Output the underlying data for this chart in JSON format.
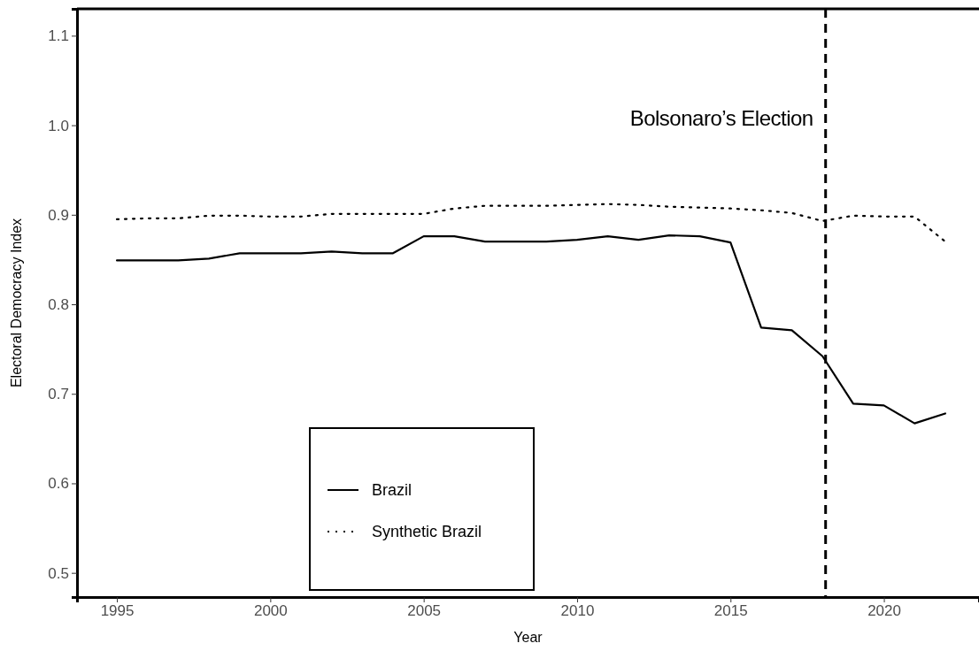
{
  "chart_data": {
    "type": "line",
    "xlabel": "Year",
    "ylabel": "Electoral Democracy Index",
    "x": [
      1995,
      1996,
      1997,
      1998,
      1999,
      2000,
      2001,
      2002,
      2003,
      2004,
      2005,
      2006,
      2007,
      2008,
      2009,
      2010,
      2011,
      2012,
      2013,
      2014,
      2015,
      2016,
      2017,
      2018,
      2019,
      2020,
      2021,
      2022
    ],
    "series": [
      {
        "name": "Brazil",
        "color": "#000000",
        "line_style": "solid",
        "values": [
          0.849,
          0.849,
          0.849,
          0.851,
          0.857,
          0.857,
          0.857,
          0.859,
          0.857,
          0.857,
          0.876,
          0.876,
          0.87,
          0.87,
          0.87,
          0.872,
          0.876,
          0.872,
          0.877,
          0.876,
          0.869,
          0.774,
          0.771,
          0.742,
          0.689,
          0.687,
          0.667,
          0.678
        ]
      },
      {
        "name": "Synthetic Brazil",
        "color": "#000000",
        "line_style": "dotted",
        "values": [
          0.895,
          0.896,
          0.896,
          0.899,
          0.899,
          0.898,
          0.898,
          0.901,
          0.901,
          0.901,
          0.901,
          0.907,
          0.91,
          0.91,
          0.91,
          0.911,
          0.912,
          0.911,
          0.909,
          0.908,
          0.907,
          0.905,
          0.902,
          0.893,
          0.899,
          0.898,
          0.898,
          0.87
        ]
      }
    ],
    "xlim": [
      1993.7,
      2023.1
    ],
    "xticks": [
      1995,
      2000,
      2005,
      2010,
      2015,
      2020
    ],
    "ylim": [
      0.473,
      1.13
    ],
    "yticks": [
      {
        "value": 0.5,
        "label": "0.5"
      },
      {
        "value": 0.6,
        "label": "0.6"
      },
      {
        "value": 0.7,
        "label": "0.7"
      },
      {
        "value": 0.8,
        "label": "0.8"
      },
      {
        "value": 0.9,
        "label": "0.9"
      },
      {
        "value": 1.0,
        "label": "1.0"
      },
      {
        "value": 1.1,
        "label": "1.1"
      }
    ],
    "ref_lines": [
      {
        "axis": "x",
        "value": 2018.1,
        "label": "Bolsonaro’s Election",
        "color": "#000000",
        "line_style": "dashed"
      }
    ],
    "grid": false,
    "legend": "bottom"
  }
}
